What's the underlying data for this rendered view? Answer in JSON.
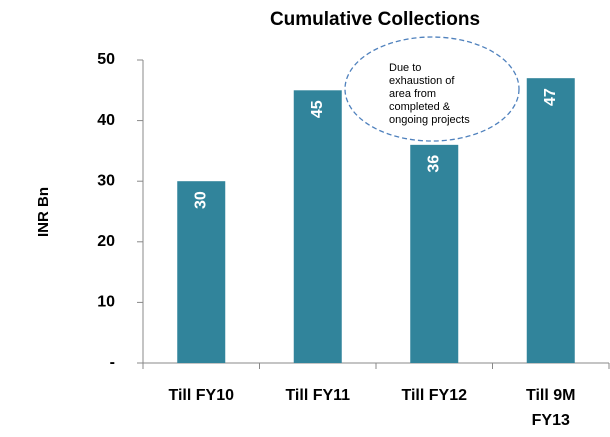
{
  "chart_data": {
    "type": "bar",
    "title": "Cumulative Collections",
    "y_label": "INR Bn",
    "categories": [
      "Till FY10",
      "Till FY11",
      "Till FY12",
      "Till 9M FY13"
    ],
    "values": [
      30,
      45,
      36,
      47
    ],
    "color": "#31849b",
    "ylim": [
      0,
      50
    ],
    "yticks": [
      {
        "value": 0,
        "label": "-"
      },
      10,
      20,
      30,
      40,
      50
    ],
    "annotation": [
      "Due to",
      "exhaustion of",
      "area from",
      "completed &",
      "ongoing projects"
    ]
  }
}
